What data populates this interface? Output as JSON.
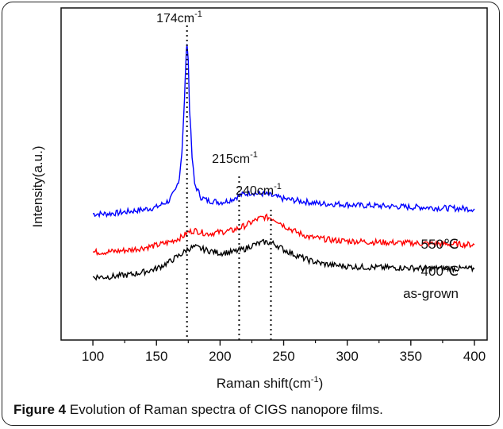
{
  "caption": {
    "label": "Figure 4",
    "text": "Evolution of Raman spectra of CIGS nanopore films."
  },
  "chart_data": {
    "type": "line",
    "xlabel": "Raman shift(cm",
    "xlabel_sup": "-1",
    "xlabel_tail": ")",
    "ylabel": "Intensity(a.u.)",
    "xlim": [
      100,
      400
    ],
    "x_ticks": [
      100,
      150,
      200,
      250,
      300,
      350,
      400
    ],
    "ylim": [
      0,
      1
    ],
    "y_ticks_shown": false,
    "grid": false,
    "colors": {
      "550": "#0000ff",
      "400": "#ff0000",
      "as-grown": "#000000",
      "axis": "#111111"
    },
    "peak_markers": [
      {
        "x": 174,
        "label": "174cm",
        "sup": "-1"
      },
      {
        "x": 215,
        "label": "215cm",
        "sup": "-1"
      },
      {
        "x": 240,
        "label": "240cm",
        "sup": "-1"
      }
    ],
    "series": [
      {
        "name": "550℃",
        "color": "#0000ff",
        "x": [
          100,
          110,
          120,
          130,
          140,
          150,
          155,
          160,
          165,
          168,
          170,
          172,
          173,
          174,
          175,
          176,
          178,
          180,
          185,
          190,
          195,
          200,
          205,
          210,
          215,
          220,
          225,
          230,
          235,
          240,
          245,
          250,
          260,
          270,
          280,
          290,
          300,
          310,
          320,
          330,
          340,
          350,
          360,
          370,
          380,
          390,
          400
        ],
        "y": [
          0.38,
          0.38,
          0.383,
          0.388,
          0.393,
          0.4,
          0.41,
          0.42,
          0.45,
          0.49,
          0.57,
          0.72,
          0.83,
          0.9,
          0.84,
          0.7,
          0.55,
          0.47,
          0.43,
          0.42,
          0.418,
          0.415,
          0.418,
          0.425,
          0.435,
          0.44,
          0.445,
          0.44,
          0.44,
          0.435,
          0.43,
          0.425,
          0.42,
          0.415,
          0.41,
          0.41,
          0.408,
          0.405,
          0.405,
          0.403,
          0.402,
          0.4,
          0.4,
          0.398,
          0.397,
          0.396,
          0.395
        ]
      },
      {
        "name": "400℃",
        "color": "#ff0000",
        "x": [
          100,
          110,
          120,
          130,
          140,
          150,
          160,
          170,
          175,
          180,
          185,
          190,
          200,
          210,
          220,
          225,
          230,
          235,
          240,
          245,
          250,
          260,
          270,
          280,
          290,
          300,
          310,
          320,
          330,
          340,
          350,
          360,
          370,
          380,
          390,
          400
        ],
        "y": [
          0.265,
          0.265,
          0.268,
          0.272,
          0.278,
          0.285,
          0.295,
          0.31,
          0.325,
          0.33,
          0.325,
          0.32,
          0.325,
          0.33,
          0.345,
          0.355,
          0.365,
          0.37,
          0.368,
          0.36,
          0.345,
          0.325,
          0.31,
          0.305,
          0.3,
          0.298,
          0.297,
          0.295,
          0.294,
          0.293,
          0.292,
          0.291,
          0.29,
          0.289,
          0.288,
          0.287
        ]
      },
      {
        "name": "as-grown",
        "color": "#000000",
        "x": [
          100,
          110,
          120,
          130,
          140,
          150,
          160,
          170,
          175,
          180,
          185,
          190,
          200,
          210,
          220,
          225,
          230,
          235,
          240,
          245,
          250,
          260,
          270,
          280,
          290,
          300,
          310,
          320,
          330,
          340,
          350,
          360,
          370,
          380,
          390,
          400
        ],
        "y": [
          0.19,
          0.19,
          0.193,
          0.197,
          0.205,
          0.215,
          0.235,
          0.26,
          0.275,
          0.28,
          0.275,
          0.27,
          0.262,
          0.265,
          0.275,
          0.285,
          0.29,
          0.295,
          0.293,
          0.285,
          0.272,
          0.255,
          0.24,
          0.23,
          0.225,
          0.222,
          0.22,
          0.219,
          0.218,
          0.218,
          0.217,
          0.216,
          0.216,
          0.215,
          0.215,
          0.214
        ]
      }
    ],
    "series_labels": [
      "550℃",
      "400℃",
      "as-grown"
    ]
  }
}
